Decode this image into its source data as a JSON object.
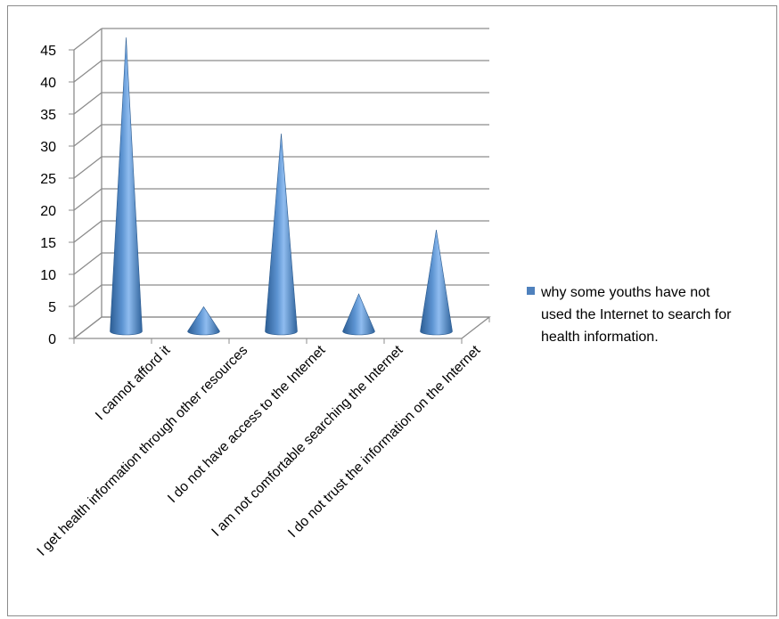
{
  "chart_data": {
    "type": "bar",
    "bar_shape": "cone",
    "categories": [
      "I cannot afford it",
      "I get health information through other resources",
      "I do not have access to the Internet",
      "I am not comfortable searching the Internet",
      "I do not trust the information on the Internet"
    ],
    "series": [
      {
        "name": "why some youths have not used the Internet to search for health information.",
        "values": [
          45,
          3,
          30,
          5,
          15
        ],
        "color": "#4f81bd"
      }
    ],
    "ylim": [
      0,
      45
    ],
    "yticks": [
      "0",
      "5",
      "10",
      "15",
      "20",
      "25",
      "30",
      "35",
      "40",
      "45"
    ],
    "grid": true,
    "legend_position": "right",
    "legend_lines": [
      "why some youths have not",
      "used the Internet to search for",
      "health information."
    ]
  }
}
